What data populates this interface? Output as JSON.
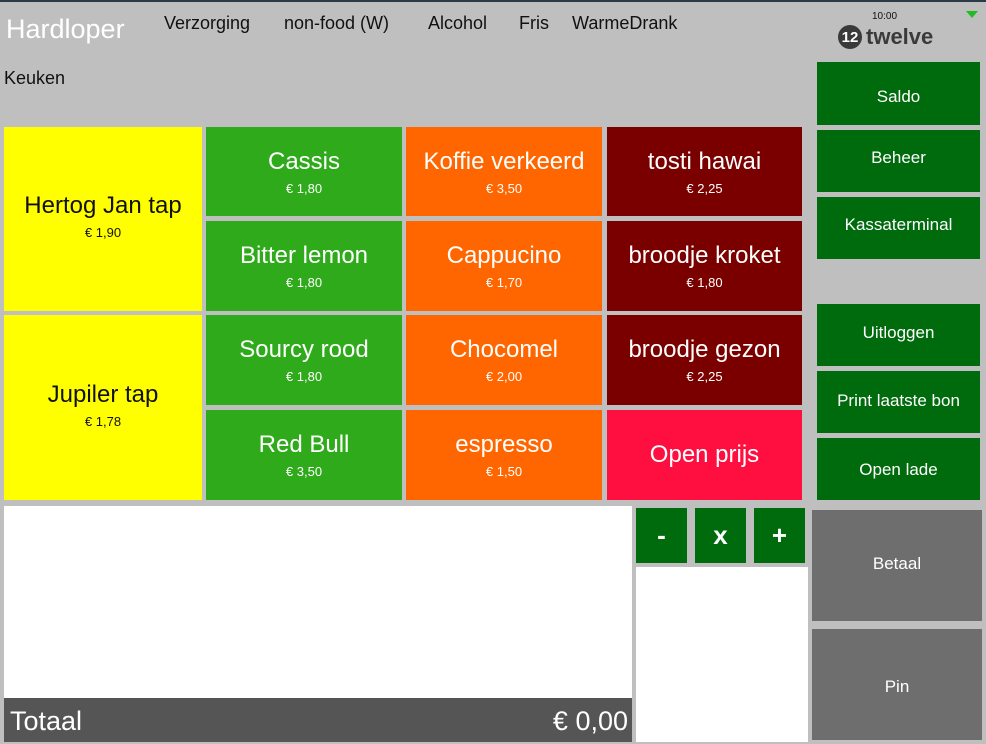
{
  "header": {
    "title": "Hardloper",
    "categories": [
      "Verzorging",
      "non-food (W)",
      "Alcohol",
      "Fris",
      "WarmeDrank"
    ],
    "subcategory": "Keuken",
    "clock": "10:00",
    "logo_mark": "12",
    "logo_text": "twelve"
  },
  "products": {
    "hertog_jan": {
      "name": "Hertog Jan tap",
      "price": "€ 1,90"
    },
    "jupiler": {
      "name": "Jupiler tap",
      "price": "€ 1,78"
    },
    "cassis": {
      "name": "Cassis",
      "price": "€ 1,80"
    },
    "bitter_lemon": {
      "name": "Bitter lemon",
      "price": "€ 1,80"
    },
    "sourcy_rood": {
      "name": "Sourcy rood",
      "price": "€ 1,80"
    },
    "red_bull": {
      "name": "Red Bull",
      "price": "€ 3,50"
    },
    "koffie_verkeerd": {
      "name": "Koffie verkeerd",
      "price": "€ 3,50"
    },
    "cappucino": {
      "name": "Cappucino",
      "price": "€ 1,70"
    },
    "chocomel": {
      "name": "Chocomel",
      "price": "€ 2,00"
    },
    "espresso": {
      "name": "espresso",
      "price": "€ 1,50"
    },
    "tosti_hawai": {
      "name": "tosti hawai",
      "price": "€ 2,25"
    },
    "broodje_kroket": {
      "name": "broodje kroket",
      "price": "€ 1,80"
    },
    "broodje_gezond": {
      "name": "broodje gezon",
      "price": "€ 2,25"
    },
    "open_prijs": {
      "name": "Open prijs"
    }
  },
  "side_buttons": {
    "saldo": "Saldo",
    "beheer": "Beheer",
    "kassaterminal": "Kassaterminal",
    "uitloggen": "Uitloggen",
    "print": "Print laatste bon",
    "open_lade": "Open lade",
    "betaal": "Betaal",
    "pin": "Pin"
  },
  "quantity": {
    "minus": "-",
    "times": "x",
    "plus": "+"
  },
  "totals": {
    "label": "Totaal",
    "value": "€ 0,00"
  },
  "colors": {
    "yellow": "#ffff00",
    "green": "#2eaa1b",
    "orange": "#ff6600",
    "maroon": "#7a0000",
    "red": "#ff0f3f",
    "action_green": "#006b0c",
    "pay_gray": "#6e6e6e",
    "wifi": "#22bb22"
  },
  "icons": [
    "wifi-icon",
    "twelve-logo-icon"
  ]
}
